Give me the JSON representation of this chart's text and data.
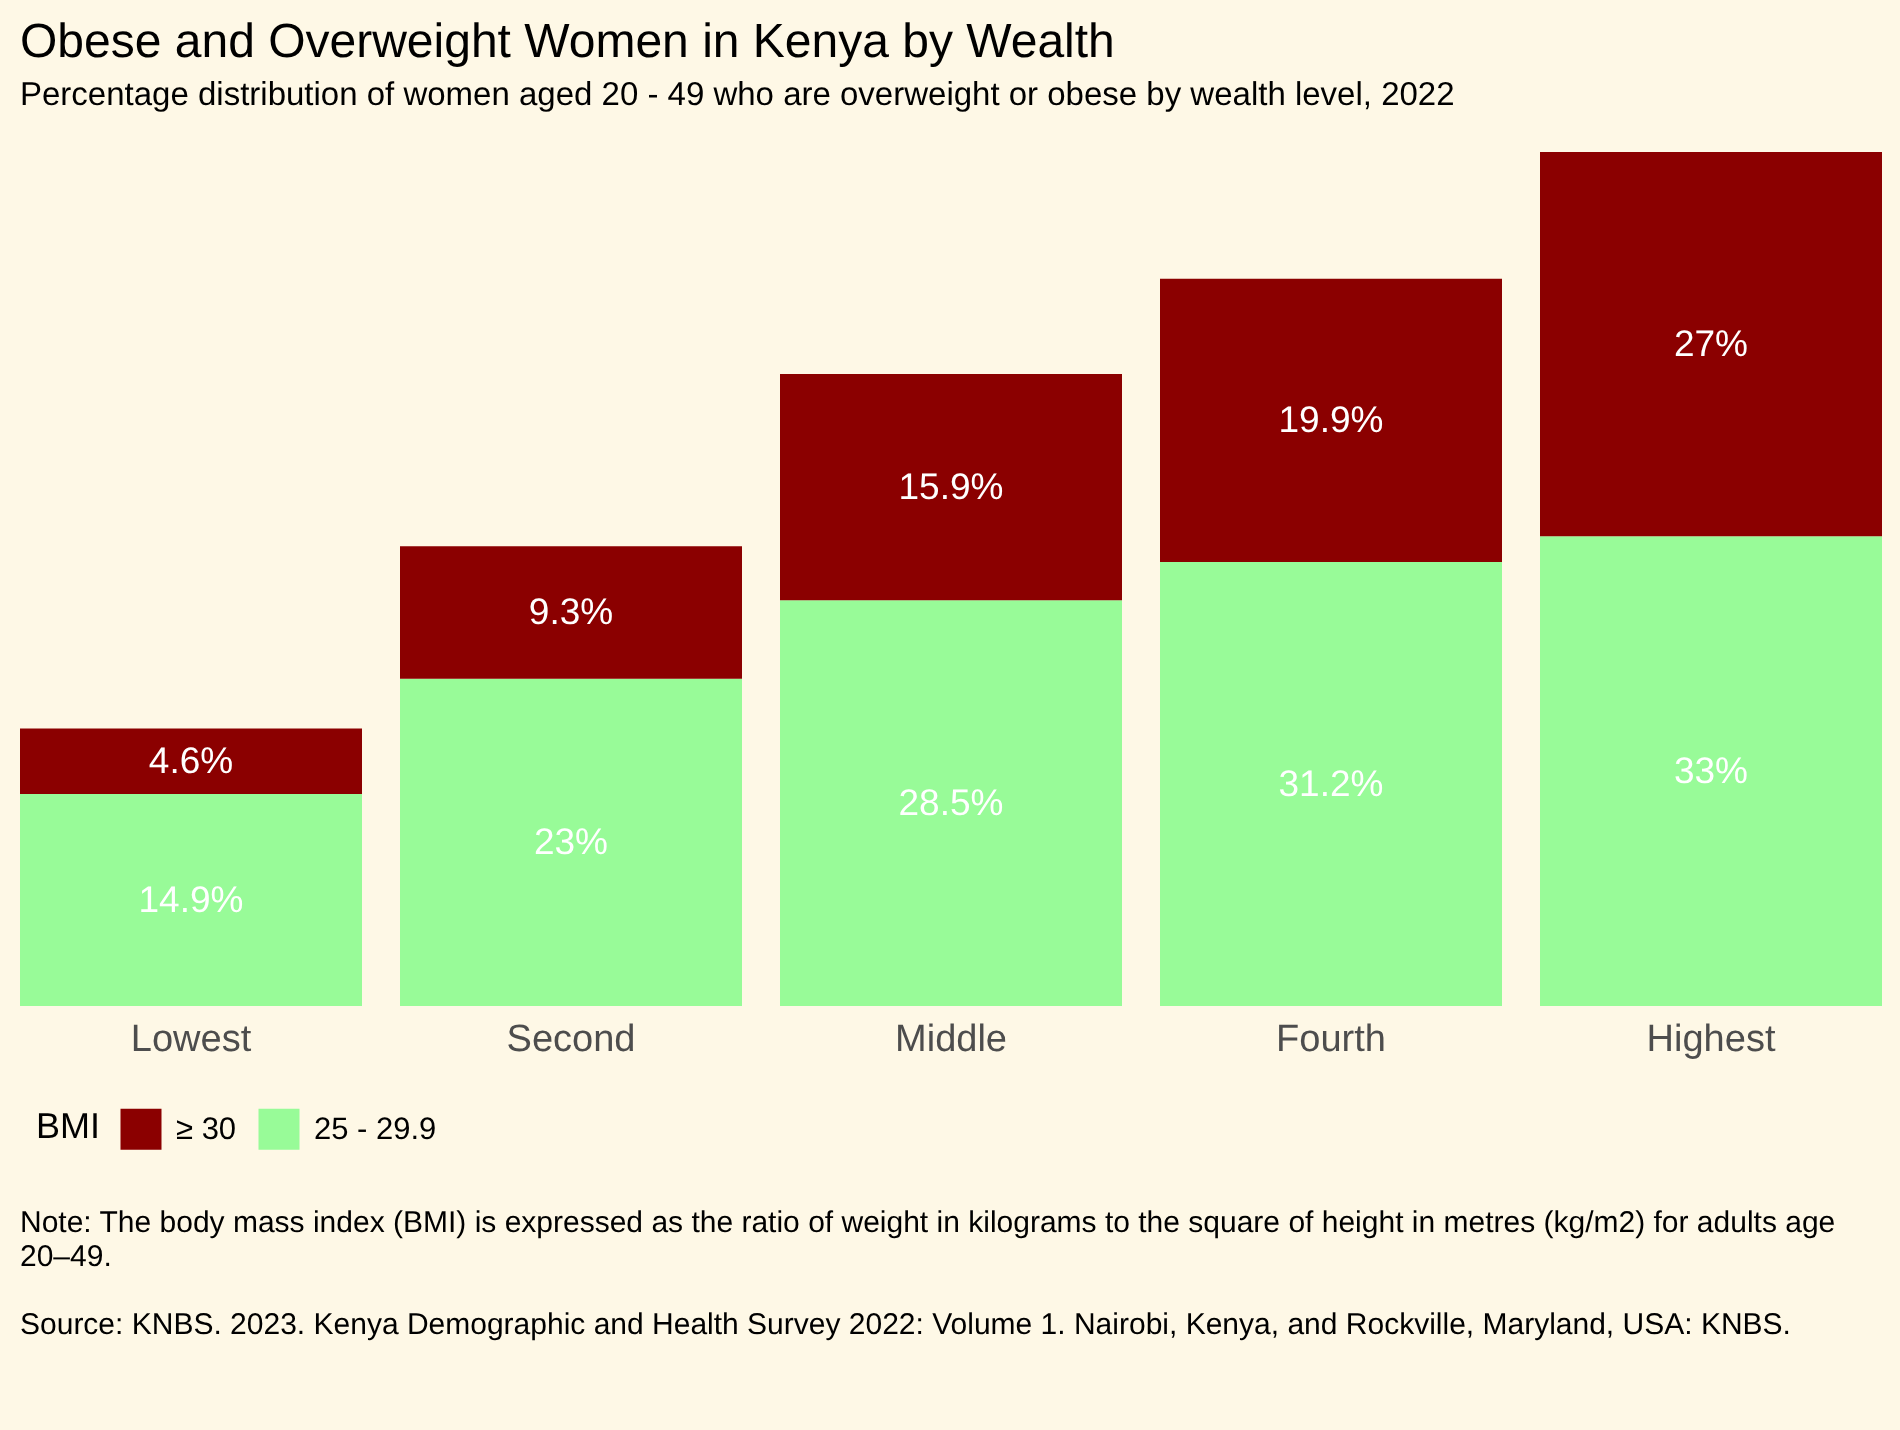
{
  "chart_data": {
    "type": "bar",
    "title": "Obese and Overweight Women in Kenya by Wealth",
    "subtitle": "Percentage distribution of women aged 20 - 49 who are overweight or obese by wealth level, 2022",
    "categories": [
      "Lowest",
      "Second",
      "Middle",
      "Fourth",
      "Highest"
    ],
    "stacked": true,
    "series": [
      {
        "name": "25 - 29.9",
        "color": "#98fb98",
        "values": [
          14.9,
          23,
          28.5,
          31.2,
          33
        ],
        "value_labels": [
          "14.9%",
          "23%",
          "28.5%",
          "31.2%",
          "33%"
        ]
      },
      {
        "name": "≥ 30",
        "color": "#8b0000",
        "values": [
          4.6,
          9.3,
          15.9,
          19.9,
          27
        ],
        "value_labels": [
          "4.6%",
          "9.3%",
          "15.9%",
          "19.9%",
          "27%"
        ]
      }
    ],
    "legend_title": "BMI",
    "legend": "bottom left",
    "tick_labels": "x",
    "annotations": [
      "Note: The body mass index (BMI) is expressed as the ratio of weight in kilograms to the square of height in metres (kg/m2) for adults age 20–49.",
      "Source: KNBS. 2023. Kenya Demographic and Health Survey 2022: Volume 1. Nairobi, Kenya, and Rockville, Maryland, USA: KNBS."
    ]
  }
}
